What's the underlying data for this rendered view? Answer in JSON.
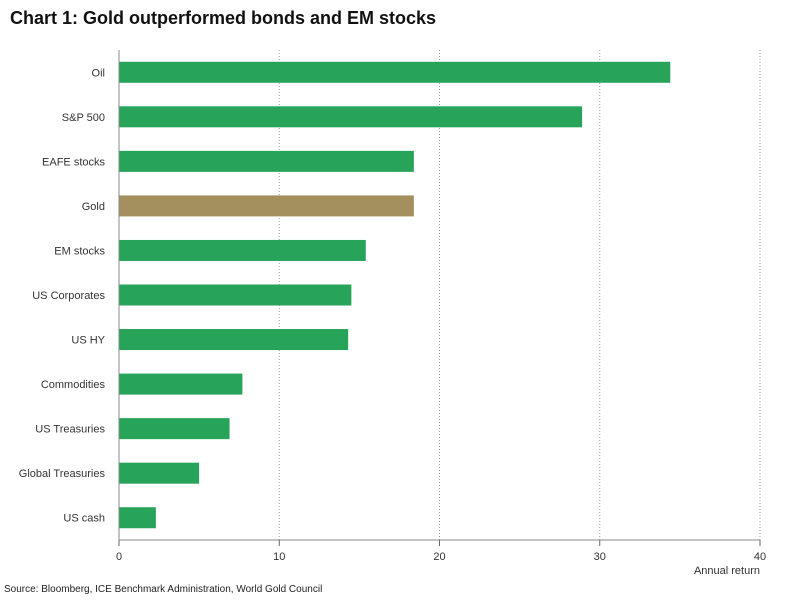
{
  "chart_data": {
    "type": "bar",
    "orientation": "horizontal",
    "title": "Chart 1: Gold outperformed bonds and EM stocks",
    "xlabel": "Annual return",
    "ylabel": "",
    "source": "Source: Bloomberg, ICE Benchmark Administration, World Gold Council",
    "categories": [
      "Oil",
      "S&P 500",
      "EAFE stocks",
      "Gold",
      "EM stocks",
      "US Corporates",
      "US HY",
      "Commodities",
      "US Treasuries",
      "Global Treasuries",
      "US cash"
    ],
    "values": [
      34.4,
      28.9,
      18.4,
      18.4,
      15.4,
      14.5,
      14.3,
      7.7,
      6.9,
      5.0,
      2.3
    ],
    "highlight_category": "Gold",
    "colors": {
      "default": "#27a35a",
      "highlight": "#a4905e"
    },
    "xlim": [
      0,
      40
    ],
    "xticks": [
      0,
      10,
      20,
      30,
      40
    ],
    "grid": "vertical dotted"
  }
}
